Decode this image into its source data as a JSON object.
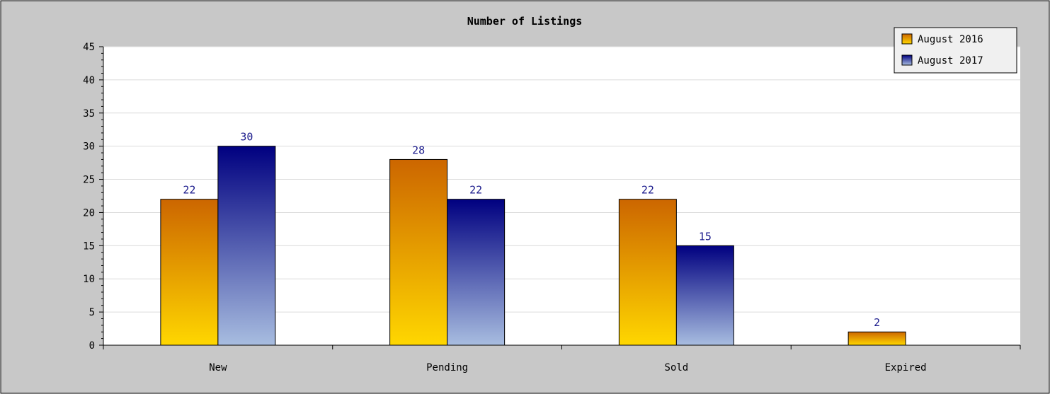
{
  "chart_data": {
    "type": "bar",
    "title": "Number of Listings",
    "categories": [
      "New",
      "Pending",
      "Sold",
      "Expired"
    ],
    "series": [
      {
        "name": "August 2016",
        "values": [
          22,
          28,
          22,
          2
        ]
      },
      {
        "name": "August 2017",
        "values": [
          30,
          22,
          15,
          0
        ]
      }
    ],
    "ylim": [
      0,
      45
    ],
    "yticks": [
      0,
      5,
      10,
      15,
      20,
      25,
      30,
      35,
      40,
      45
    ],
    "grid": true,
    "legend_position": "top-right",
    "colors": {
      "series_2016_top": "#cc6600",
      "series_2016_bottom": "#ffd700",
      "series_2017_top": "#000080",
      "series_2017_bottom": "#a8bde0",
      "frame_background": "#c8c8c8",
      "plot_background": "#ffffff",
      "value_label": "#1a1a8c"
    }
  }
}
